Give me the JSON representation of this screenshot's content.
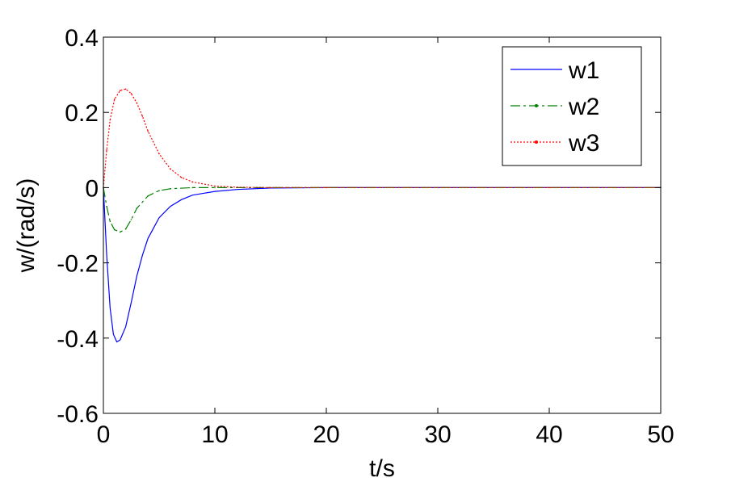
{
  "chart_data": {
    "type": "line",
    "title": "",
    "xlabel": "t/s",
    "ylabel": "w/(rad/s)",
    "xlim": [
      0,
      50
    ],
    "ylim": [
      -0.6,
      0.4
    ],
    "xticks": [
      0,
      10,
      20,
      30,
      40,
      50
    ],
    "yticks": [
      -0.6,
      -0.4,
      -0.2,
      0,
      0.2,
      0.4
    ],
    "xtick_labels": [
      "0",
      "10",
      "20",
      "30",
      "40",
      "50"
    ],
    "ytick_labels": [
      "-0.6",
      "-0.4",
      "-0.2",
      "0",
      "0.2",
      "0.4"
    ],
    "grid": false,
    "legend_position": "top-right",
    "series": [
      {
        "name": "w1",
        "color": "#0000ff",
        "style": "solid",
        "marker": "none",
        "x": [
          0,
          0.3,
          0.6,
          0.9,
          1.2,
          1.5,
          2.0,
          2.5,
          3.0,
          3.5,
          4.0,
          5.0,
          6.0,
          7.0,
          8.0,
          10.0,
          12.0,
          15.0,
          20.0,
          30.0,
          40.0,
          50.0
        ],
        "y": [
          0,
          -0.18,
          -0.32,
          -0.39,
          -0.41,
          -0.405,
          -0.37,
          -0.305,
          -0.235,
          -0.18,
          -0.135,
          -0.08,
          -0.05,
          -0.032,
          -0.02,
          -0.01,
          -0.005,
          -0.001,
          0,
          0,
          0,
          0
        ]
      },
      {
        "name": "w2",
        "color": "#008000",
        "style": "dashdot",
        "marker": "dot",
        "x": [
          0,
          0.3,
          0.6,
          1.0,
          1.5,
          2.0,
          2.5,
          3.0,
          4.0,
          5.0,
          6.0,
          8.0,
          10.0,
          15.0,
          20.0,
          30.0,
          40.0,
          50.0
        ],
        "y": [
          0,
          -0.05,
          -0.09,
          -0.112,
          -0.118,
          -0.11,
          -0.085,
          -0.055,
          -0.022,
          -0.008,
          -0.003,
          0,
          0,
          0,
          0,
          0,
          0,
          0
        ]
      },
      {
        "name": "w3",
        "color": "#ff0000",
        "style": "dotted",
        "marker": "dot",
        "x": [
          0,
          0.3,
          0.6,
          1.0,
          1.5,
          2.0,
          2.5,
          3.0,
          3.5,
          4.0,
          5.0,
          6.0,
          7.0,
          8.0,
          10.0,
          12.0,
          15.0,
          20.0,
          30.0,
          40.0,
          50.0
        ],
        "y": [
          0,
          0.1,
          0.18,
          0.235,
          0.258,
          0.262,
          0.25,
          0.225,
          0.19,
          0.15,
          0.09,
          0.05,
          0.027,
          0.015,
          0.004,
          0.001,
          0,
          0,
          0,
          0,
          0
        ]
      }
    ]
  }
}
